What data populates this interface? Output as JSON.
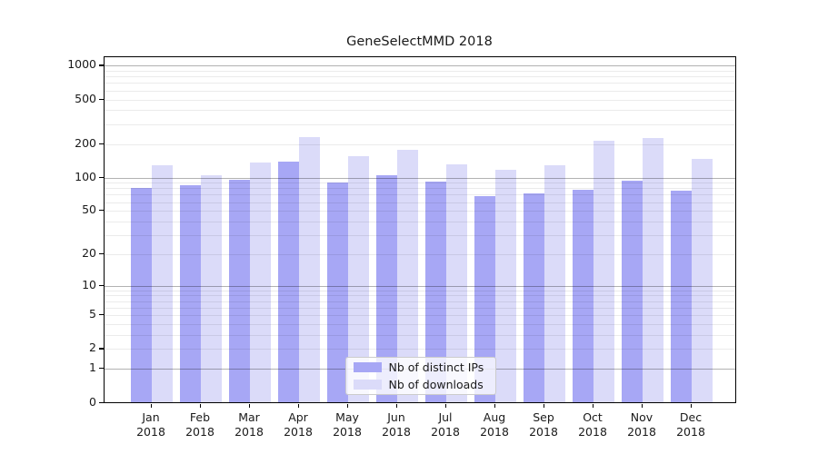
{
  "title": "GeneSelectMMD 2018",
  "legend": {
    "position": "lower center",
    "items": [
      {
        "label": "Nb of distinct IPs",
        "color": "#a7a7f5"
      },
      {
        "label": "Nb of downloads",
        "color": "#dbdbf9"
      }
    ]
  },
  "chart_data": {
    "type": "bar",
    "title": "GeneSelectMMD 2018",
    "categories": [
      "Jan 2018",
      "Feb 2018",
      "Mar 2018",
      "Apr 2018",
      "May 2018",
      "Jun 2018",
      "Jul 2018",
      "Aug 2018",
      "Sep 2018",
      "Oct 2018",
      "Nov 2018",
      "Dec 2018"
    ],
    "x_tick_labels": [
      {
        "month": "Jan",
        "year": "2018"
      },
      {
        "month": "Feb",
        "year": "2018"
      },
      {
        "month": "Mar",
        "year": "2018"
      },
      {
        "month": "Apr",
        "year": "2018"
      },
      {
        "month": "May",
        "year": "2018"
      },
      {
        "month": "Jun",
        "year": "2018"
      },
      {
        "month": "Jul",
        "year": "2018"
      },
      {
        "month": "Aug",
        "year": "2018"
      },
      {
        "month": "Sep",
        "year": "2018"
      },
      {
        "month": "Oct",
        "year": "2018"
      },
      {
        "month": "Nov",
        "year": "2018"
      },
      {
        "month": "Dec",
        "year": "2018"
      }
    ],
    "series": [
      {
        "name": "Nb of distinct IPs",
        "color": "#a7a7f5",
        "values": [
          80,
          85,
          96,
          140,
          90,
          105,
          92,
          68,
          72,
          77,
          93,
          76
        ]
      },
      {
        "name": "Nb of downloads",
        "color": "#dbdbf9",
        "values": [
          130,
          104,
          137,
          230,
          157,
          176,
          132,
          118,
          130,
          212,
          227,
          146
        ]
      }
    ],
    "xlabel": "",
    "ylabel": "",
    "yscale": "log10(1+value)",
    "ylim": [
      0,
      1200
    ],
    "y_ticks": [
      0,
      1,
      2,
      5,
      10,
      20,
      50,
      100,
      200,
      500,
      1000
    ],
    "y_major_gridlines": [
      1,
      10,
      100,
      1000
    ],
    "y_minor_gridlines": [
      2,
      3,
      4,
      5,
      6,
      7,
      8,
      9,
      20,
      30,
      40,
      50,
      60,
      70,
      80,
      90,
      200,
      300,
      400,
      500,
      600,
      700,
      800,
      900
    ],
    "grid": "horizontal, drawn over bars",
    "legend_position": "lower center",
    "colors": {
      "series_dark": "#a7a7f5",
      "series_light": "#dbdbf9",
      "major_grid": "#b3b3b3",
      "minor_grid": "#ebebeb",
      "axis": "#000000",
      "background": "#ffffff"
    }
  }
}
